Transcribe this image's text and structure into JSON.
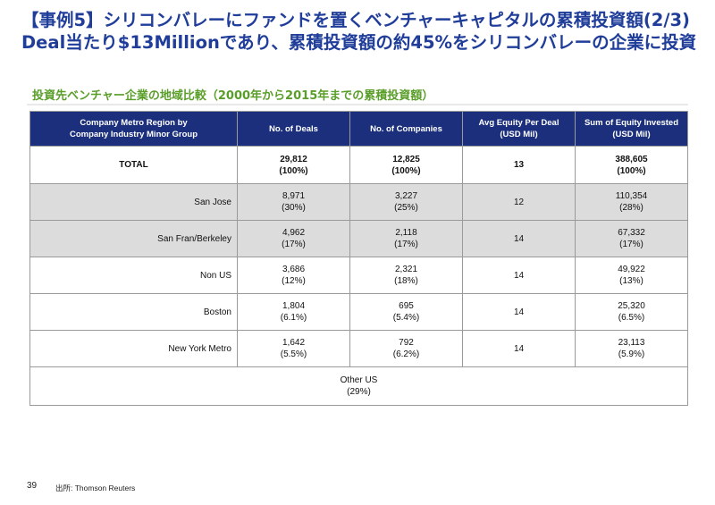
{
  "title": {
    "line1": "【事例5】シリコンバレーにファンドを置くベンチャーキャピタルの累積投資額(2/3)",
    "line2": "Deal当たり$13Millionであり、累積投資額の約45%をシリコンバレーの企業に投資"
  },
  "subtitle": "投資先ベンチャー企業の地域比較（2000年から2015年までの累積投資額）",
  "table": {
    "headers": [
      [
        "Company Metro Region by",
        "Company Industry Minor Group"
      ],
      [
        "No. of Deals"
      ],
      [
        "No. of Companies"
      ],
      [
        "Avg Equity Per Deal",
        "(USD Mil)"
      ],
      [
        "Sum of Equity Invested",
        "(USD Mil)"
      ]
    ],
    "rows": [
      {
        "region": "TOTAL",
        "deals": [
          "29,812",
          "(100%)"
        ],
        "companies": [
          "12,825",
          "(100%)"
        ],
        "avg": "13",
        "sum": [
          "388,605",
          "(100%)"
        ]
      },
      {
        "region": "San Jose",
        "deals": [
          "8,971",
          "(30%)"
        ],
        "companies": [
          "3,227",
          "(25%)"
        ],
        "avg": "12",
        "sum": [
          "110,354",
          "(28%)"
        ]
      },
      {
        "region": "San Fran/Berkeley",
        "deals": [
          "4,962",
          "(17%)"
        ],
        "companies": [
          "2,118",
          "(17%)"
        ],
        "avg": "14",
        "sum": [
          "67,332",
          "(17%)"
        ]
      },
      {
        "region": "Non US",
        "deals": [
          "3,686",
          "(12%)"
        ],
        "companies": [
          "2,321",
          "(18%)"
        ],
        "avg": "14",
        "sum": [
          "49,922",
          "(13%)"
        ]
      },
      {
        "region": "Boston",
        "deals": [
          "1,804",
          "(6.1%)"
        ],
        "companies": [
          "695",
          "(5.4%)"
        ],
        "avg": "14",
        "sum": [
          "25,320",
          "(6.5%)"
        ]
      },
      {
        "region": "New York Metro",
        "deals": [
          "1,642",
          "(5.5%)"
        ],
        "companies": [
          "792",
          "(6.2%)"
        ],
        "avg": "14",
        "sum": [
          "23,113",
          "(5.9%)"
        ]
      }
    ],
    "other": [
      "Other US",
      "(29%)"
    ]
  },
  "footer": {
    "page_number": "39",
    "source": "出所: Thomson Reuters"
  }
}
